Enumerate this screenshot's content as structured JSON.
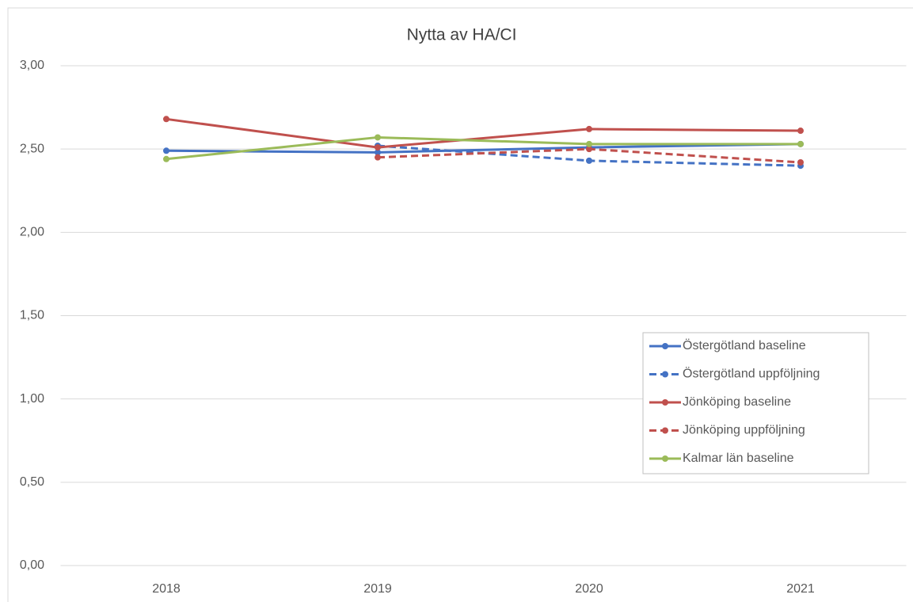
{
  "chart_data": {
    "type": "line",
    "title": "Nytta av HA/CI",
    "categories": [
      "2018",
      "2019",
      "2020",
      "2021"
    ],
    "series": [
      {
        "name": "Östergötland baseline",
        "color": "#4472c4",
        "dashed": false,
        "values": [
          2.49,
          2.48,
          2.51,
          2.53
        ]
      },
      {
        "name": "Östergötland uppföljning",
        "color": "#4472c4",
        "dashed": true,
        "values": [
          null,
          2.52,
          2.43,
          2.4
        ]
      },
      {
        "name": "Jönköping baseline",
        "color": "#c0504d",
        "dashed": false,
        "values": [
          2.68,
          2.51,
          2.62,
          2.61
        ]
      },
      {
        "name": "Jönköping uppföljning",
        "color": "#c0504d",
        "dashed": true,
        "values": [
          null,
          2.45,
          2.5,
          2.42
        ]
      },
      {
        "name": "Kalmar län baseline",
        "color": "#9bbb59",
        "dashed": false,
        "values": [
          2.44,
          2.57,
          2.53,
          2.53
        ]
      }
    ],
    "ylim": [
      0,
      3
    ],
    "yticks": [
      {
        "value": 0,
        "label": "0,00"
      },
      {
        "value": 0.5,
        "label": "0,50"
      },
      {
        "value": 1,
        "label": "1,00"
      },
      {
        "value": 1.5,
        "label": "1,50"
      },
      {
        "value": 2,
        "label": "2,00"
      },
      {
        "value": 2.5,
        "label": "2,50"
      },
      {
        "value": 3,
        "label": "3,00"
      }
    ],
    "grid": true,
    "legend": "inside-right"
  }
}
